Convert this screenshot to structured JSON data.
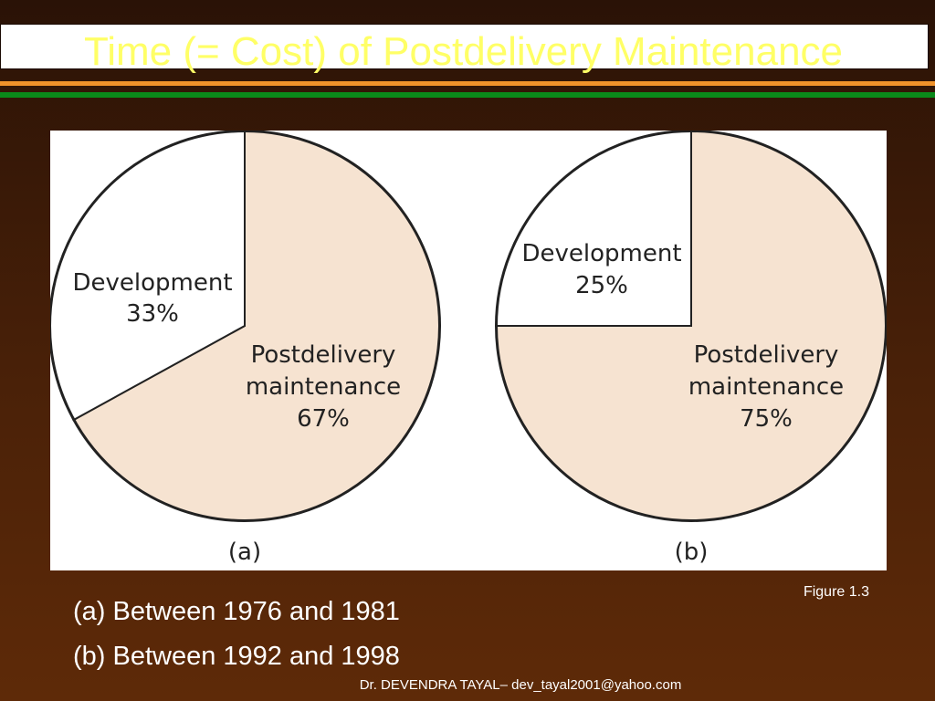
{
  "slide": {
    "title": "Time (= Cost) of Postdelivery Maintenance",
    "figure_label": "Figure 1.3",
    "descriptions": [
      "(a) Between 1976 and 1981",
      "(b) Between 1992 and 1998"
    ],
    "footer": "Dr. DEVENDRA TAYAL– dev_tayal2001@yahoo.com"
  },
  "colors": {
    "title_text": "#ffff66",
    "maintenance_fill": "#f6e3d1",
    "development_fill": "#ffffff",
    "outline": "#222222"
  },
  "chart_data": [
    {
      "type": "pie",
      "caption": "(a)",
      "slices": [
        {
          "label": "Postdelivery maintenance",
          "value": 67,
          "display": "67%"
        },
        {
          "label": "Development",
          "value": 33,
          "display": "33%"
        }
      ]
    },
    {
      "type": "pie",
      "caption": "(b)",
      "slices": [
        {
          "label": "Postdelivery maintenance",
          "value": 75,
          "display": "75%"
        },
        {
          "label": "Development",
          "value": 25,
          "display": "25%"
        }
      ]
    }
  ]
}
